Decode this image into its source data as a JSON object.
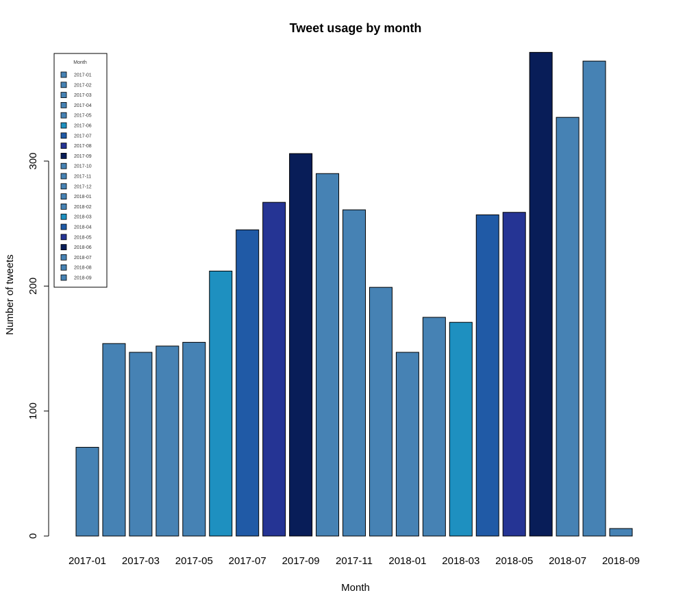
{
  "chart_data": {
    "type": "bar",
    "title": "Tweet usage by month",
    "xlabel": "Month",
    "ylabel": "Number of tweets",
    "ylim": [
      0,
      385
    ],
    "yticks": [
      0,
      100,
      200,
      300
    ],
    "categories": [
      "2017-01",
      "2017-02",
      "2017-03",
      "2017-04",
      "2017-05",
      "2017-06",
      "2017-07",
      "2017-08",
      "2017-09",
      "2017-10",
      "2017-11",
      "2017-12",
      "2018-01",
      "2018-02",
      "2018-03",
      "2018-04",
      "2018-05",
      "2018-06",
      "2018-07",
      "2018-08",
      "2018-09"
    ],
    "xtick_labels": [
      "2017-01",
      "",
      "2017-03",
      "",
      "2017-05",
      "",
      "2017-07",
      "",
      "2017-09",
      "",
      "2017-11",
      "",
      "2018-01",
      "",
      "2018-03",
      "",
      "2018-05",
      "",
      "2018-07",
      "",
      "2018-09"
    ],
    "values": [
      71,
      154,
      147,
      152,
      155,
      212,
      245,
      267,
      306,
      290,
      261,
      199,
      147,
      175,
      171,
      257,
      259,
      387,
      335,
      380,
      6
    ],
    "colors": [
      "#4682b4",
      "#4682b4",
      "#4682b4",
      "#4682b4",
      "#4682b4",
      "#1e90c0",
      "#205aa6",
      "#253494",
      "#081d58",
      "#4682b4",
      "#4682b4",
      "#4682b4",
      "#4682b4",
      "#4682b4",
      "#1e90c0",
      "#205aa6",
      "#253494",
      "#081d58",
      "#4682b4",
      "#4682b4",
      "#4682b4"
    ],
    "legend": {
      "title": "Month",
      "position": "top-left",
      "entries": [
        "2017-01",
        "2017-02",
        "2017-03",
        "2017-04",
        "2017-05",
        "2017-06",
        "2017-07",
        "2017-08",
        "2017-09",
        "2017-10",
        "2017-11",
        "2017-12",
        "2018-01",
        "2018-02",
        "2018-03",
        "2018-04",
        "2018-05",
        "2018-06",
        "2018-07",
        "2018-08",
        "2018-09"
      ]
    },
    "grid": false
  }
}
